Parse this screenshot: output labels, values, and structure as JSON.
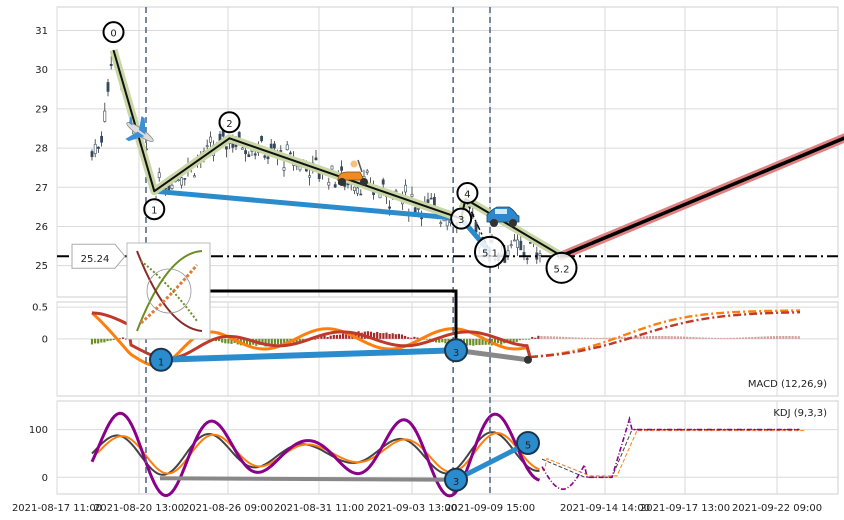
{
  "chart_data": [
    {
      "type": "candlestick",
      "panel": "price",
      "ylim": [
        24.2,
        31.6
      ],
      "yticks": [
        25,
        26,
        27,
        28,
        29,
        30,
        31
      ],
      "grid": true,
      "wave_points": [
        {
          "label": "0",
          "x": "2021-08-19 14:00",
          "y": 30.5
        },
        {
          "label": "1",
          "x": "2021-08-21 13:00",
          "y": 26.9
        },
        {
          "label": "2",
          "x": "2021-08-26 11:00",
          "y": 28.25
        },
        {
          "label": "3",
          "x": "2021-09-07 09:00",
          "y": 26.2
        },
        {
          "label": "4",
          "x": "2021-09-07 17:00",
          "y": 26.7
        },
        {
          "label": "5.1",
          "x": "2021-09-09 15:00",
          "y": 25.35
        },
        {
          "label": "5.2",
          "x": "2021-09-12 17:00",
          "y": 25.25
        }
      ],
      "forecast_line": [
        {
          "x": "2021-09-12 17:00",
          "y": 25.25
        },
        {
          "x": "2021-09-26 09:00",
          "y": 28.35
        }
      ],
      "level_line": {
        "value": 25.24,
        "label": "25.24"
      },
      "vertical_markers": [
        "2021-08-21 00:00",
        "2021-09-06 18:00",
        "2021-09-09 15:00"
      ]
    },
    {
      "type": "bar",
      "panel": "macd",
      "title": "MACD (12,26,9)",
      "ylim": [
        -0.9,
        0.58
      ],
      "yticks": [
        0.0,
        0.5
      ],
      "divergence_points": [
        {
          "label": "1",
          "y": -0.33
        },
        {
          "label": "3",
          "y": -0.18
        }
      ]
    },
    {
      "type": "line",
      "panel": "kdj",
      "title": "KDJ (9,3,3)",
      "ylim": [
        -35,
        160
      ],
      "yticks": [
        0,
        100
      ],
      "divergence_points": [
        {
          "label": "3",
          "y": -5
        },
        {
          "label": "5",
          "y": 72
        }
      ]
    }
  ],
  "xaxis": {
    "ticks": [
      "2021-08-17 11:00",
      "2021-08-20 13:00",
      "2021-08-26 09:00",
      "2021-08-31 11:00",
      "2021-09-03 13:00",
      "2021-09-09 15:00",
      "2021-09-14 14:00",
      "2021-09-17 13:00",
      "2021-09-22 09:00"
    ]
  },
  "colors": {
    "wave": "#111111",
    "wave_halo": "#c9d6a6",
    "trend_blue": "#2a8ccc",
    "forecast": "#000000",
    "forecast_halo": "#e08080",
    "macd_pos": "#a52a2a",
    "macd_neg": "#6b8e23",
    "macd_line": "#ff7f0e",
    "signal_line": "#c0392b",
    "kdj_k": "#444444",
    "kdj_d": "#ff7f0e",
    "kdj_j": "#8b008b"
  },
  "icons": [
    "airplane-icon",
    "scooter-icon",
    "car-icon",
    "inset-thumbnail"
  ]
}
